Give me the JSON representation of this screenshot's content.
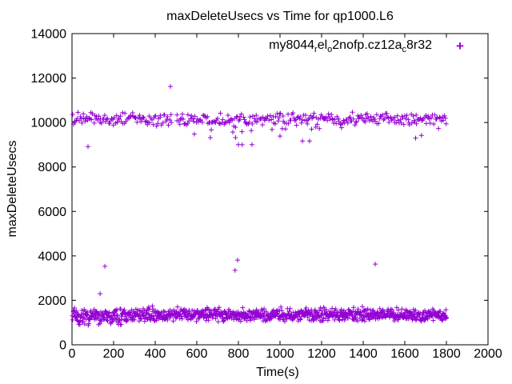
{
  "chart_data": {
    "type": "scatter",
    "title": "maxDeleteUsecs vs Time for qp1000.L6",
    "xlabel": "Time(s)",
    "ylabel": "maxDeleteUsecs",
    "xlim": [
      0,
      2000
    ],
    "ylim": [
      0,
      14000
    ],
    "xticks": [
      0,
      200,
      400,
      600,
      800,
      1000,
      1200,
      1400,
      1600,
      1800,
      2000
    ],
    "yticks": [
      0,
      2000,
      4000,
      6000,
      8000,
      10000,
      12000,
      14000
    ],
    "grid": false,
    "legend_position": "inside-top-right",
    "axis_color": "#000000",
    "background_color": "#ffffff",
    "series": [
      {
        "name": "my8044_rel_o2nofp.cz12a_c8r32",
        "label_parts": [
          {
            "text": "my8044"
          },
          {
            "text": "r",
            "sub": true
          },
          {
            "text": "el"
          },
          {
            "text": "o",
            "sub": true
          },
          {
            "text": "2nofp.cz12a"
          },
          {
            "text": "c",
            "sub": true
          },
          {
            "text": "8r32"
          }
        ],
        "marker": "plus",
        "color": "#9400D3",
        "bands": [
          {
            "desc": "upper latency band, maxDeleteUsecs ~9850-10550 for t=0..1800s",
            "t_start": 3,
            "t_end": 1802,
            "count": 380,
            "y_center": 10160,
            "y_spread": 330,
            "gaps": [
              [
                482,
                500
              ]
            ],
            "low_tail_prob": 0.06,
            "low_tail_min": 180,
            "low_tail_max": 420
          },
          {
            "desc": "lower latency band, maxDeleteUsecs ~1050-1700 for t=0..1800s",
            "t_start": 1,
            "t_end": 1802,
            "count": 1000,
            "y_center": 1340,
            "y_spread": 330,
            "gaps": [],
            "early_t_end": 240,
            "early_dip_prob": 0.3,
            "early_low_min": 860,
            "early_low_max": 1150,
            "top_tail_prob": 0.02,
            "top_tail_low": 1650,
            "top_tail_high": 1750
          }
        ],
        "outliers": [
          [
            77,
            8920
          ],
          [
            135,
            2300
          ],
          [
            158,
            3530
          ],
          [
            473,
            11620
          ],
          [
            588,
            9480
          ],
          [
            665,
            9320
          ],
          [
            773,
            9570
          ],
          [
            784,
            3350
          ],
          [
            786,
            9320
          ],
          [
            796,
            3810
          ],
          [
            800,
            9010
          ],
          [
            818,
            9000
          ],
          [
            865,
            9010
          ],
          [
            1000,
            9390
          ],
          [
            1108,
            9170
          ],
          [
            1142,
            9170
          ],
          [
            1458,
            3630
          ],
          [
            1652,
            9300
          ],
          [
            1680,
            9420
          ]
        ]
      }
    ]
  }
}
